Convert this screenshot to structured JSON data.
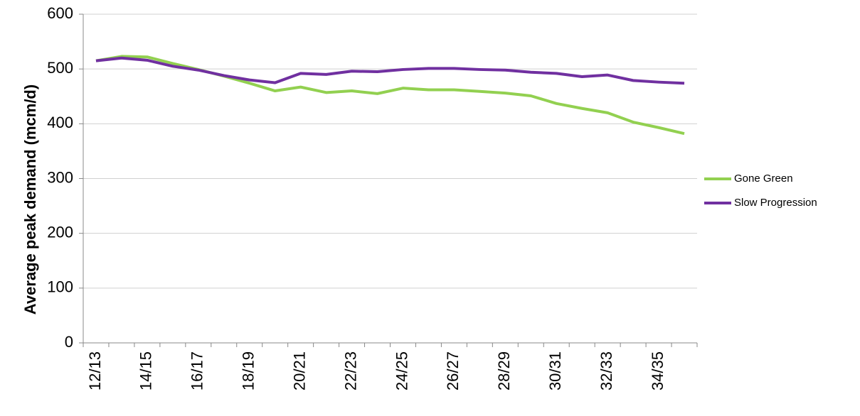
{
  "chart_data": {
    "type": "line",
    "y_label": "Average peak demand (mcm/d)",
    "categories": [
      "12/13",
      null,
      "14/15",
      null,
      "16/17",
      null,
      "18/19",
      null,
      "20/21",
      null,
      "22/23",
      null,
      "24/25",
      null,
      "26/27",
      null,
      "28/29",
      null,
      "30/31",
      null,
      "32/33",
      null,
      "34/35",
      null
    ],
    "series": [
      {
        "name": "Gone Green",
        "color": "#92d050",
        "values": [
          515,
          523,
          522,
          510,
          499,
          487,
          474,
          460,
          467,
          457,
          460,
          455,
          465,
          462,
          462,
          459,
          456,
          451,
          437,
          428,
          420,
          403,
          393,
          382
        ]
      },
      {
        "name": "Slow Progression",
        "color": "#7030a0",
        "values": [
          515,
          520,
          516,
          505,
          498,
          488,
          480,
          475,
          492,
          490,
          496,
          495,
          499,
          501,
          501,
          499,
          498,
          494,
          492,
          486,
          489,
          479,
          476,
          474
        ]
      }
    ],
    "ylim": [
      0,
      600
    ],
    "yticks": [
      0,
      100,
      200,
      300,
      400,
      500,
      600
    ],
    "grid": true,
    "legend": "right"
  }
}
